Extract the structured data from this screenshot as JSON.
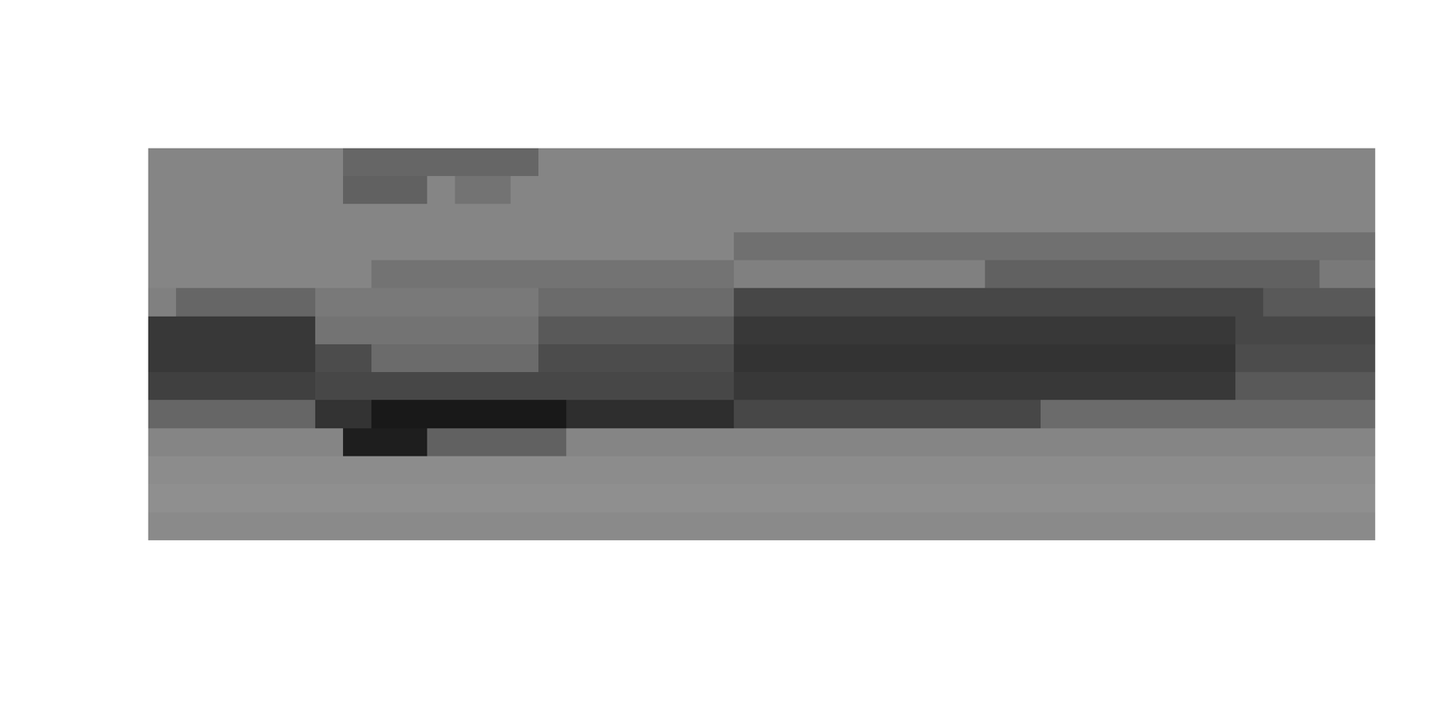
{
  "chart_data": {
    "type": "heatmap",
    "tick_labels": false,
    "value_range": [
      0,
      100
    ],
    "cells": [
      [
        52,
        52,
        52,
        52,
        52,
        52,
        52,
        40,
        40,
        40,
        40,
        40,
        40,
        40,
        52,
        52,
        52,
        52,
        52,
        52,
        52,
        52,
        52,
        52,
        52,
        52,
        52,
        52,
        52,
        52,
        52,
        52,
        52,
        52,
        52,
        52,
        52,
        52,
        52,
        52,
        52,
        52,
        52,
        52
      ],
      [
        52,
        52,
        52,
        52,
        52,
        52,
        52,
        38,
        38,
        38,
        52,
        45,
        45,
        52,
        52,
        52,
        52,
        52,
        52,
        52,
        52,
        52,
        52,
        52,
        52,
        52,
        52,
        52,
        52,
        52,
        52,
        52,
        52,
        52,
        52,
        52,
        52,
        52,
        52,
        52,
        52,
        52,
        52,
        52
      ],
      [
        52,
        52,
        52,
        52,
        52,
        52,
        52,
        52,
        52,
        52,
        52,
        52,
        52,
        52,
        52,
        52,
        52,
        52,
        52,
        52,
        52,
        52,
        52,
        52,
        52,
        52,
        52,
        52,
        52,
        52,
        52,
        52,
        52,
        52,
        52,
        52,
        52,
        52,
        52,
        52,
        52,
        52,
        52,
        52
      ],
      [
        52,
        52,
        52,
        52,
        52,
        52,
        52,
        52,
        52,
        52,
        52,
        52,
        52,
        52,
        52,
        52,
        52,
        52,
        52,
        52,
        52,
        44,
        44,
        44,
        44,
        44,
        44,
        44,
        44,
        44,
        44,
        44,
        44,
        44,
        44,
        44,
        44,
        44,
        44,
        44,
        44,
        44,
        44,
        44
      ],
      [
        52,
        52,
        52,
        52,
        52,
        52,
        52,
        52,
        45,
        45,
        45,
        45,
        45,
        45,
        45,
        45,
        45,
        45,
        45,
        45,
        45,
        50,
        50,
        50,
        50,
        50,
        50,
        50,
        50,
        50,
        38,
        38,
        38,
        38,
        38,
        38,
        38,
        38,
        38,
        38,
        38,
        38,
        48,
        48
      ],
      [
        50,
        40,
        40,
        40,
        40,
        40,
        48,
        48,
        48,
        48,
        48,
        48,
        48,
        48,
        42,
        42,
        42,
        42,
        42,
        42,
        42,
        28,
        28,
        28,
        28,
        28,
        28,
        28,
        28,
        28,
        28,
        28,
        28,
        28,
        28,
        28,
        28,
        28,
        28,
        28,
        35,
        35,
        35,
        35
      ],
      [
        22,
        22,
        22,
        22,
        22,
        22,
        45,
        45,
        45,
        45,
        45,
        45,
        45,
        45,
        35,
        35,
        35,
        35,
        35,
        35,
        35,
        22,
        22,
        22,
        22,
        22,
        22,
        22,
        22,
        22,
        22,
        22,
        22,
        22,
        22,
        22,
        22,
        22,
        22,
        28,
        28,
        28,
        28,
        28
      ],
      [
        22,
        22,
        22,
        22,
        22,
        22,
        30,
        30,
        42,
        42,
        42,
        42,
        42,
        42,
        30,
        30,
        30,
        30,
        30,
        30,
        30,
        20,
        20,
        20,
        20,
        20,
        20,
        20,
        20,
        20,
        20,
        20,
        20,
        20,
        20,
        20,
        20,
        20,
        20,
        30,
        30,
        30,
        30,
        30
      ],
      [
        25,
        25,
        25,
        25,
        25,
        25,
        28,
        28,
        28,
        28,
        28,
        28,
        28,
        28,
        28,
        28,
        28,
        28,
        28,
        28,
        28,
        22,
        22,
        22,
        22,
        22,
        22,
        22,
        22,
        22,
        22,
        22,
        22,
        22,
        22,
        22,
        22,
        22,
        22,
        35,
        35,
        35,
        35,
        35
      ],
      [
        40,
        40,
        40,
        40,
        40,
        40,
        20,
        20,
        10,
        10,
        10,
        10,
        10,
        10,
        10,
        18,
        18,
        18,
        18,
        18,
        18,
        28,
        28,
        28,
        28,
        28,
        28,
        28,
        28,
        28,
        28,
        28,
        42,
        42,
        42,
        42,
        42,
        42,
        42,
        42,
        42,
        42,
        42,
        42
      ],
      [
        52,
        52,
        52,
        52,
        52,
        52,
        52,
        12,
        12,
        12,
        38,
        38,
        38,
        38,
        38,
        52,
        52,
        52,
        52,
        52,
        52,
        52,
        52,
        52,
        52,
        52,
        52,
        52,
        52,
        52,
        52,
        52,
        52,
        52,
        52,
        52,
        52,
        52,
        52,
        52,
        52,
        52,
        52,
        52
      ],
      [
        55,
        55,
        55,
        55,
        55,
        55,
        55,
        55,
        55,
        55,
        55,
        55,
        55,
        55,
        55,
        55,
        55,
        55,
        55,
        55,
        55,
        55,
        55,
        55,
        55,
        55,
        55,
        55,
        55,
        55,
        55,
        55,
        55,
        55,
        55,
        55,
        55,
        55,
        55,
        55,
        55,
        55,
        55,
        55
      ],
      [
        56,
        56,
        56,
        56,
        56,
        56,
        56,
        56,
        56,
        56,
        56,
        56,
        56,
        56,
        56,
        56,
        56,
        56,
        56,
        56,
        56,
        56,
        56,
        56,
        56,
        56,
        56,
        56,
        56,
        56,
        56,
        56,
        56,
        56,
        56,
        56,
        56,
        56,
        56,
        56,
        56,
        56,
        56,
        56
      ],
      [
        54,
        54,
        54,
        54,
        54,
        54,
        54,
        54,
        54,
        54,
        54,
        54,
        54,
        54,
        54,
        54,
        54,
        54,
        54,
        54,
        54,
        54,
        54,
        54,
        54,
        54,
        54,
        54,
        54,
        54,
        54,
        54,
        54,
        54,
        54,
        54,
        54,
        54,
        54,
        54,
        54,
        54,
        54,
        54
      ]
    ]
  }
}
